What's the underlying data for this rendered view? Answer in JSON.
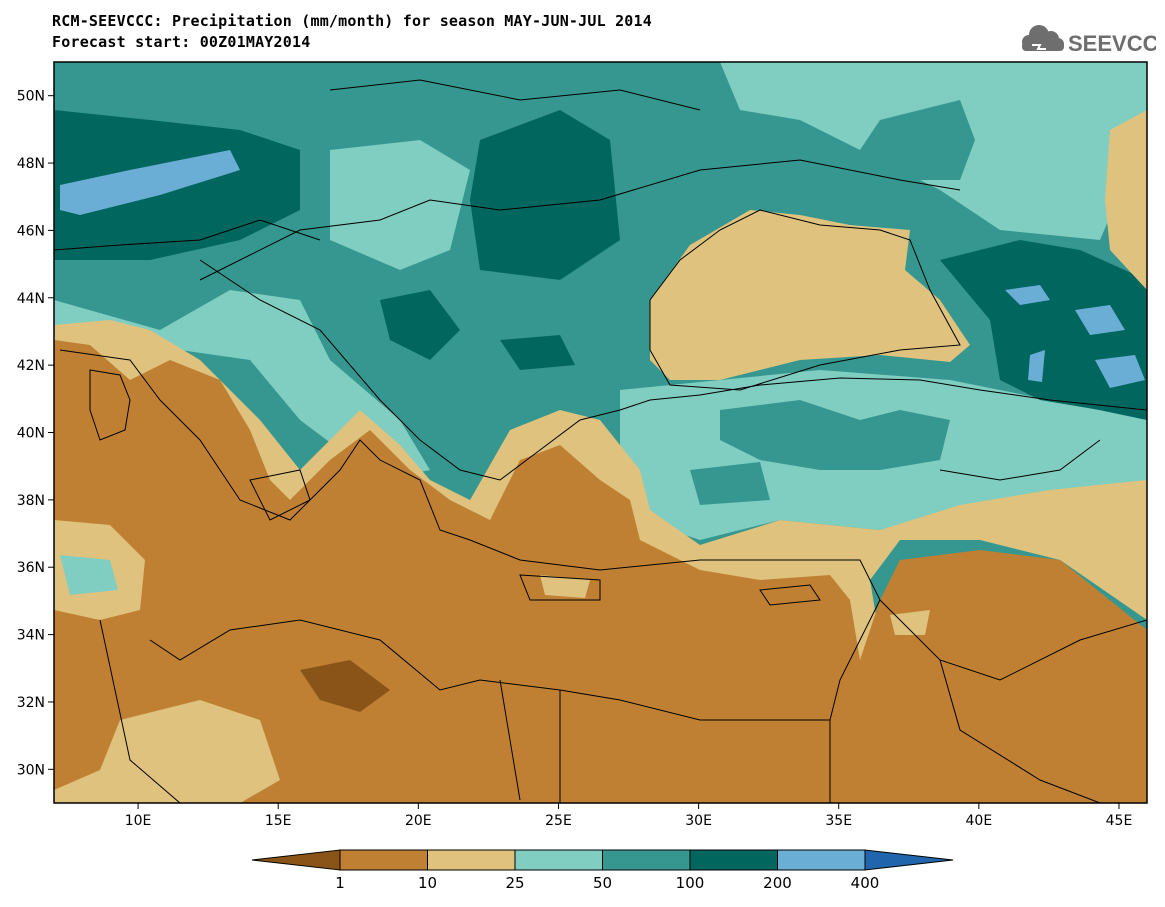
{
  "header": {
    "title": "RCM-SEEVCCC: Precipitation (mm/month) for season MAY-JUN-JUL 2014",
    "subtitle": "Forecast start: 00Z01MAY2014"
  },
  "logo": {
    "text": "SEEVCCC",
    "icon": "cloud-icon"
  },
  "map": {
    "variable": "Precipitation (mm/month)",
    "lon_range": [
      7,
      46
    ],
    "lat_range": [
      29,
      51
    ],
    "lon_ticks": [
      "10E",
      "15E",
      "20E",
      "25E",
      "30E",
      "35E",
      "40E",
      "45E"
    ],
    "lat_ticks": [
      "30N",
      "32N",
      "34N",
      "36N",
      "38N",
      "40N",
      "42N",
      "44N",
      "46N",
      "48N",
      "50N"
    ]
  },
  "colorbar": {
    "labels": [
      "1",
      "10",
      "25",
      "50",
      "100",
      "200",
      "400"
    ],
    "colors": {
      "below_1": "#8a5418",
      "1_10": "#bf8033",
      "10_25": "#dfc27d",
      "25_50": "#80cdc1",
      "50_100": "#35978f",
      "100_200": "#01665e",
      "200_400": "#6aaed6",
      "above_400": "#2166ac"
    }
  }
}
